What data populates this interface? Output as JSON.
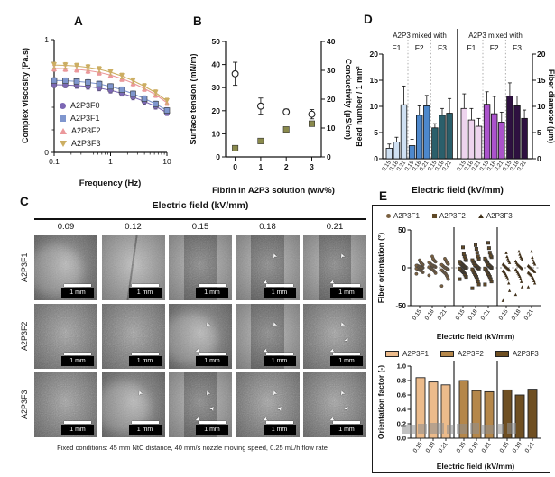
{
  "figure": {
    "panels": {
      "a": "A",
      "b": "B",
      "c": "C",
      "d": "D",
      "e": "E"
    }
  },
  "panel_c": {
    "header": "Electric field (kV/mm)",
    "columns": [
      "0.09",
      "0.12",
      "0.15",
      "0.18",
      "0.21"
    ],
    "rows": [
      "A2P3F1",
      "A2P3F2",
      "A2P3F3"
    ],
    "scale_bar": "1 mm",
    "caption": "Fixed conditions: 45 mm NtC distance, 40 mm/s nozzle moving speed, 0.25 mL/h flow rate",
    "cells": [
      [
        {
          "p": "blob",
          "arrows": 0
        },
        {
          "p": "plain",
          "arrows": 0
        },
        {
          "p": "band",
          "arrows": 0
        },
        {
          "p": "band",
          "arrows": 2
        },
        {
          "p": "band",
          "arrows": 2
        }
      ],
      [
        {
          "p": "full",
          "arrows": 0
        },
        {
          "p": "full",
          "arrows": 0
        },
        {
          "p": "blob",
          "arrows": 2
        },
        {
          "p": "band",
          "arrows": 2
        },
        {
          "p": "full",
          "arrows": 3
        }
      ],
      [
        {
          "p": "full",
          "arrows": 0
        },
        {
          "p": "blob",
          "arrows": 1
        },
        {
          "p": "band",
          "arrows": 3
        },
        {
          "p": "full",
          "arrows": 3
        },
        {
          "p": "full",
          "arrows": 3
        }
      ]
    ]
  },
  "chart_data": [
    {
      "id": "A",
      "type": "line",
      "xlabel": "Frequency (Hz)",
      "ylabel": "Complex viscosity (Pa.s)",
      "xscale": "log",
      "xlim": [
        0.1,
        10
      ],
      "ylim": [
        0,
        1
      ],
      "xticks": [
        "0.1",
        "1",
        "10"
      ],
      "yticks": [
        "0",
        "1"
      ],
      "x": [
        0.1,
        0.158,
        0.251,
        0.398,
        0.631,
        1,
        1.585,
        2.512,
        3.981,
        6.31,
        10
      ],
      "err": 0.025,
      "series": [
        {
          "name": "A2P3F0",
          "marker": "circle",
          "color": "#7c67b4",
          "values": [
            0.6,
            0.598,
            0.593,
            0.585,
            0.571,
            0.551,
            0.524,
            0.491,
            0.452,
            0.408,
            0.352
          ]
        },
        {
          "name": "A2P3F1",
          "marker": "square",
          "color": "#7f96ce",
          "values": [
            0.638,
            0.636,
            0.63,
            0.621,
            0.607,
            0.585,
            0.556,
            0.52,
            0.477,
            0.43,
            0.372
          ]
        },
        {
          "name": "A2P3F2",
          "marker": "tri",
          "color": "#eb989b",
          "values": [
            0.745,
            0.743,
            0.737,
            0.726,
            0.71,
            0.686,
            0.654,
            0.614,
            0.566,
            0.512,
            0.441
          ]
        },
        {
          "name": "A2P3F3",
          "marker": "tridown",
          "color": "#ccae62",
          "values": [
            0.775,
            0.772,
            0.766,
            0.754,
            0.737,
            0.712,
            0.678,
            0.636,
            0.586,
            0.53,
            0.456
          ]
        }
      ]
    },
    {
      "id": "B",
      "type": "scatter",
      "xlabel": "Fibrin in A2P3 solution (w/v%)",
      "ylabel_left": "Surface tension (mN/m)",
      "ylabel_right": "Conductivity (μS/cm)",
      "x": [
        "0",
        "1",
        "2",
        "3"
      ],
      "left": {
        "ylim": [
          0,
          50
        ],
        "yticks": [
          0,
          10,
          20,
          30,
          40,
          50
        ],
        "color": "#111111",
        "marker": "circle-open",
        "values": [
          36,
          22,
          19.5,
          18.5
        ],
        "err": [
          5,
          3.5,
          1.2,
          2
        ]
      },
      "right": {
        "ylim": [
          0,
          40
        ],
        "yticks": [
          0,
          10,
          20,
          30,
          40
        ],
        "color": "#8f8f3e",
        "marker": "square",
        "fill": "#8a8a4c",
        "values": [
          3,
          5.5,
          9.5,
          11.5
        ],
        "err": [
          0.8,
          0.8,
          0.8,
          0.8
        ]
      }
    },
    {
      "id": "D",
      "type": "bar",
      "xlabel": "Electric field (kV/mm)",
      "group_header": "A2P3 mixed with",
      "subgroups": [
        "F1",
        "F2",
        "F3"
      ],
      "categories": [
        "0.15",
        "0.18",
        "0.21"
      ],
      "ylim": [
        0,
        20
      ],
      "yticks": [
        0,
        5,
        10,
        15,
        20
      ],
      "left": {
        "ylabel": "Bead number / 1 mm²",
        "axis_color": "#12787a",
        "series": [
          {
            "name": "F1",
            "color": "#cfe0f2",
            "values": [
              2.0,
              3.2,
              10.3
            ],
            "err": [
              0.8,
              0.9,
              3.6
            ]
          },
          {
            "name": "F2",
            "color": "#4d88cc",
            "values": [
              2.5,
              8.3,
              10.1
            ],
            "err": [
              1.2,
              1.8,
              2.0
            ]
          },
          {
            "name": "F3",
            "color": "#2b5f6b",
            "values": [
              5.9,
              8.3,
              8.7
            ],
            "err": [
              0.8,
              1.3,
              2.8
            ]
          }
        ]
      },
      "right": {
        "ylabel": "Fiber diameter (μm)",
        "axis_color": "#8b2fa8",
        "series": [
          {
            "name": "F1",
            "color": "#eed4ee",
            "values": [
              9.6,
              7.4,
              6.2
            ],
            "err": [
              2.8,
              2.2,
              1.5
            ]
          },
          {
            "name": "F2",
            "color": "#ab53cc",
            "values": [
              10.4,
              8.6,
              7.0
            ],
            "err": [
              2.4,
              3.3,
              1.9
            ]
          },
          {
            "name": "F3",
            "color": "#2e1040",
            "values": [
              12.0,
              10.1,
              7.7
            ],
            "err": [
              2.5,
              1.9,
              1.6
            ]
          }
        ]
      }
    },
    {
      "id": "E1",
      "type": "scatter",
      "xlabel": "Electric field (kV/mm)",
      "ylabel": "Fiber orientation (°)",
      "ylim": [
        -50,
        50
      ],
      "yticks": [
        "50",
        "0",
        "-50"
      ],
      "categories": [
        "0.15",
        "0.18",
        "0.21"
      ],
      "groups": [
        {
          "name": "A2P3F1",
          "marker": "circle",
          "color": "#7a6040",
          "points": [
            [
              -8,
              -6,
              -5,
              -4,
              -3,
              -3,
              -2,
              -2,
              -1,
              -1,
              0,
              0,
              0,
              1,
              1,
              2,
              2,
              3,
              3,
              4,
              5,
              6,
              8,
              10
            ],
            [
              -10,
              -7,
              -5,
              -4,
              -3,
              -2,
              -1,
              0,
              0,
              1,
              1,
              2,
              2,
              3,
              3,
              4,
              5,
              6,
              7,
              8,
              9,
              10,
              12,
              15
            ],
            [
              -24,
              -15,
              -12,
              -10,
              -8,
              -7,
              -6,
              -5,
              -4,
              -3,
              -2,
              -2,
              -1,
              0,
              0,
              1,
              2,
              3,
              4,
              5,
              6,
              8,
              10,
              12
            ]
          ]
        },
        {
          "name": "A2P3F2",
          "marker": "square",
          "color": "#5f4826",
          "points": [
            [
              -15,
              -12,
              -10,
              -8,
              -6,
              -5,
              -4,
              -3,
              -2,
              -1,
              0,
              0,
              1,
              2,
              3,
              4,
              5,
              6,
              8,
              10,
              12,
              15,
              18,
              27
            ],
            [
              -27,
              -22,
              -18,
              -15,
              -12,
              -10,
              -8,
              -6,
              -4,
              -2,
              -1,
              0,
              1,
              2,
              3,
              4,
              6,
              8,
              10,
              12,
              15,
              20,
              25,
              30
            ],
            [
              -22,
              -18,
              -15,
              -12,
              -10,
              -8,
              -6,
              -4,
              -2,
              -1,
              0,
              1,
              2,
              3,
              4,
              6,
              8,
              10,
              12,
              14,
              16,
              20,
              26,
              33
            ]
          ]
        },
        {
          "name": "A2P3F3",
          "marker": "tri",
          "color": "#40301a",
          "points": [
            [
              -43,
              -30,
              -20,
              -15,
              -12,
              -10,
              -8,
              -6,
              -5,
              -4,
              -3,
              -2,
              -1,
              0,
              1,
              2,
              3,
              4,
              5,
              7,
              9,
              12,
              15,
              20
            ],
            [
              -35,
              -25,
              -18,
              -14,
              -11,
              -9,
              -7,
              -5,
              -3,
              -2,
              -1,
              0,
              1,
              2,
              3,
              4,
              5,
              7,
              9,
              11,
              13,
              15,
              18,
              22
            ],
            [
              -25,
              -20,
              -17,
              -14,
              -12,
              -10,
              -9,
              -8,
              -7,
              -6,
              -5,
              -4,
              -3,
              -2,
              -1,
              0,
              1,
              2,
              3,
              5,
              7,
              10,
              14,
              22
            ]
          ]
        }
      ]
    },
    {
      "id": "E2",
      "type": "bar",
      "xlabel": "Electric field (kV/mm)",
      "ylabel": "Orientation factor (-)",
      "ylim": [
        0,
        1.0
      ],
      "yticks": [
        "0.0",
        "0.2",
        "0.4",
        "0.6",
        "0.8",
        "1.0"
      ],
      "categories": [
        "0.15",
        "0.18",
        "0.21"
      ],
      "series": [
        {
          "name": "A2P3F1",
          "color": "#ecbb8b",
          "values": [
            0.84,
            0.78,
            0.74
          ]
        },
        {
          "name": "A2P3F2",
          "color": "#b5874a",
          "values": [
            0.8,
            0.66,
            0.645
          ]
        },
        {
          "name": "A2P3F3",
          "color": "#6f4f22",
          "values": [
            0.67,
            0.6,
            0.68
          ]
        }
      ]
    }
  ]
}
